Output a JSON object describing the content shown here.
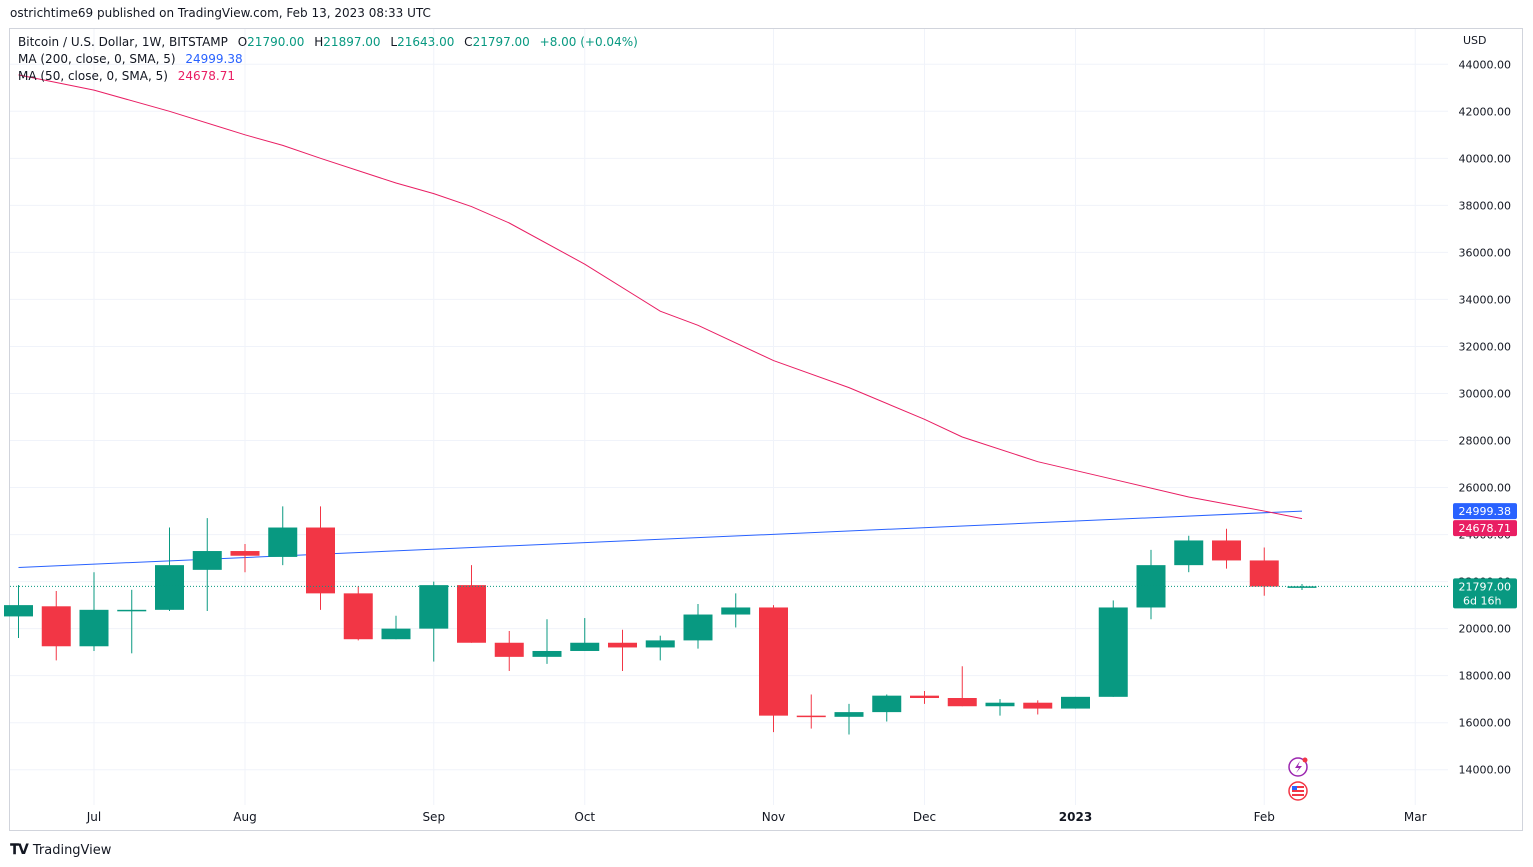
{
  "header": {
    "published": "ostrichtime69 published on TradingView.com, Feb 13, 2023 08:33 UTC"
  },
  "legend": {
    "symbol": "Bitcoin / U.S. Dollar, 1W, BITSTAMP",
    "open_label": "O",
    "open": "21790.00",
    "high_label": "H",
    "high": "21897.00",
    "low_label": "L",
    "low": "21643.00",
    "close_label": "C",
    "close": "21797.00",
    "change": "+8.00 (+0.04%)",
    "ma200_label": "MA (200, close, 0, SMA, 5)",
    "ma200_value": "24999.38",
    "ma50_label": "MA (50, close, 0, SMA, 5)",
    "ma50_value": "24678.71"
  },
  "footer": {
    "brand": "TradingView"
  },
  "colors": {
    "up": "#089981",
    "down": "#f23645",
    "ma200": "#2962ff",
    "ma50": "#e91e63",
    "price_line": "#089981"
  },
  "chart_data": {
    "type": "candlestick",
    "currency": "USD",
    "ylim": [
      12500,
      45500
    ],
    "y_ticks": [
      14000,
      16000,
      18000,
      20000,
      22000,
      24000,
      26000,
      28000,
      30000,
      32000,
      34000,
      36000,
      38000,
      40000,
      42000,
      44000
    ],
    "x_ticks": [
      {
        "label": "Jul",
        "week": 2,
        "bold": false
      },
      {
        "label": "Aug",
        "week": 6,
        "bold": false
      },
      {
        "label": "Sep",
        "week": 11,
        "bold": false
      },
      {
        "label": "Oct",
        "week": 15,
        "bold": false
      },
      {
        "label": "Nov",
        "week": 20,
        "bold": false
      },
      {
        "label": "Dec",
        "week": 24,
        "bold": false
      },
      {
        "label": "2023",
        "week": 28,
        "bold": true
      },
      {
        "label": "Feb",
        "week": 33,
        "bold": false
      },
      {
        "label": "Mar",
        "week": 37,
        "bold": false
      }
    ],
    "candles": [
      {
        "o": 20520,
        "h": 21850,
        "l": 19600,
        "c": 21000
      },
      {
        "o": 20950,
        "h": 21600,
        "l": 18650,
        "c": 19250
      },
      {
        "o": 19250,
        "h": 22400,
        "l": 19050,
        "c": 20800
      },
      {
        "o": 20800,
        "h": 21650,
        "l": 18950,
        "c": 20800
      },
      {
        "o": 20800,
        "h": 24300,
        "l": 20750,
        "c": 22700
      },
      {
        "o": 22500,
        "h": 24700,
        "l": 20750,
        "c": 23300
      },
      {
        "o": 23300,
        "h": 23600,
        "l": 22400,
        "c": 23100
      },
      {
        "o": 23050,
        "h": 25200,
        "l": 22700,
        "c": 24300
      },
      {
        "o": 24300,
        "h": 25200,
        "l": 20800,
        "c": 21500
      },
      {
        "o": 21500,
        "h": 21800,
        "l": 19500,
        "c": 19550
      },
      {
        "o": 19550,
        "h": 20550,
        "l": 19550,
        "c": 20000
      },
      {
        "o": 20000,
        "h": 22000,
        "l": 18600,
        "c": 21850
      },
      {
        "o": 21850,
        "h": 22700,
        "l": 19400,
        "c": 19400
      },
      {
        "o": 19400,
        "h": 19900,
        "l": 18200,
        "c": 18800
      },
      {
        "o": 18800,
        "h": 20400,
        "l": 18500,
        "c": 19050
      },
      {
        "o": 19050,
        "h": 20450,
        "l": 19050,
        "c": 19400
      },
      {
        "o": 19400,
        "h": 19950,
        "l": 18200,
        "c": 19200
      },
      {
        "o": 19200,
        "h": 19700,
        "l": 18650,
        "c": 19500
      },
      {
        "o": 19500,
        "h": 21050,
        "l": 19150,
        "c": 20600
      },
      {
        "o": 20600,
        "h": 21500,
        "l": 20050,
        "c": 20900
      },
      {
        "o": 20900,
        "h": 21000,
        "l": 15600,
        "c": 16300
      },
      {
        "o": 16300,
        "h": 17200,
        "l": 15750,
        "c": 16250
      },
      {
        "o": 16250,
        "h": 16800,
        "l": 15500,
        "c": 16450
      },
      {
        "o": 16450,
        "h": 17200,
        "l": 16050,
        "c": 17150
      },
      {
        "o": 17150,
        "h": 17350,
        "l": 16800,
        "c": 17050
      },
      {
        "o": 17050,
        "h": 18400,
        "l": 16700,
        "c": 16700
      },
      {
        "o": 16700,
        "h": 17000,
        "l": 16300,
        "c": 16850
      },
      {
        "o": 16850,
        "h": 16950,
        "l": 16350,
        "c": 16600
      },
      {
        "o": 16600,
        "h": 17100,
        "l": 16600,
        "c": 17100
      },
      {
        "o": 17100,
        "h": 21200,
        "l": 17100,
        "c": 20900
      },
      {
        "o": 20900,
        "h": 23350,
        "l": 20400,
        "c": 22700
      },
      {
        "o": 22700,
        "h": 23950,
        "l": 22400,
        "c": 23750
      },
      {
        "o": 23750,
        "h": 24250,
        "l": 22550,
        "c": 22900
      },
      {
        "o": 22900,
        "h": 23450,
        "l": 21400,
        "c": 21790
      },
      {
        "o": 21790,
        "h": 21897,
        "l": 21643,
        "c": 21797
      }
    ],
    "series": [
      {
        "name": "MA (200, close, 0, SMA, 5)",
        "x": [
          0,
          34
        ],
        "values": [
          22600,
          24999.38
        ]
      },
      {
        "name": "MA (50, close, 0, SMA, 5)",
        "x": [
          0,
          2,
          4,
          6,
          7,
          8,
          10,
          11,
          12,
          13,
          15,
          17,
          18,
          20,
          22,
          24,
          25,
          27,
          29,
          31,
          33,
          34
        ],
        "values": [
          43550,
          42900,
          42000,
          41000,
          40550,
          40000,
          38950,
          38500,
          37950,
          37250,
          35500,
          33500,
          32900,
          31400,
          30250,
          28900,
          28150,
          27100,
          26350,
          25600,
          25000,
          24678.71
        ]
      }
    ],
    "last_price_label": "21797.00",
    "countdown_label": "6d 16h"
  }
}
